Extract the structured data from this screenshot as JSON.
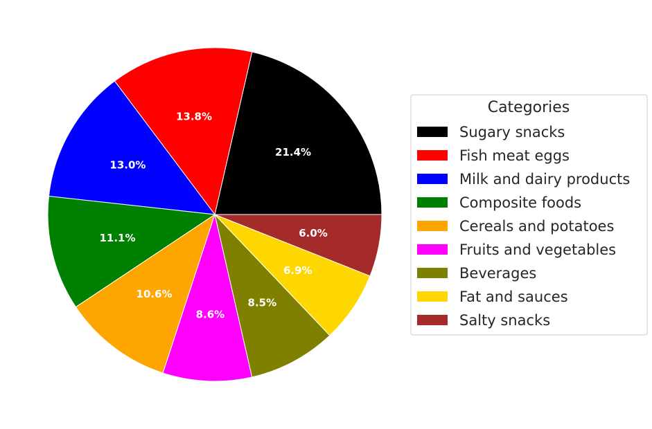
{
  "chart_data": {
    "type": "pie",
    "categories": [
      "Sugary snacks",
      "Fish meat eggs",
      "Milk and dairy products",
      "Composite foods",
      "Cereals and potatoes",
      "Fruits and vegetables",
      "Beverages",
      "Fat and sauces",
      "Salty snacks"
    ],
    "values": [
      21.4,
      13.8,
      13.0,
      11.1,
      10.6,
      8.6,
      8.5,
      6.9,
      6.0
    ],
    "labels": [
      "21.4%",
      "13.8%",
      "13.0%",
      "11.1%",
      "10.6%",
      "8.6%",
      "8.5%",
      "6.9%",
      "6.0%"
    ],
    "colors": [
      "#000000",
      "#ff0000",
      "#0000ff",
      "#008000",
      "#ffa500",
      "#ff00ff",
      "#808000",
      "#ffd700",
      "#a52a2a"
    ],
    "start_angle_deg": 0,
    "direction": "counterclockwise",
    "legend": {
      "title": "Categories",
      "placement": "right"
    }
  }
}
